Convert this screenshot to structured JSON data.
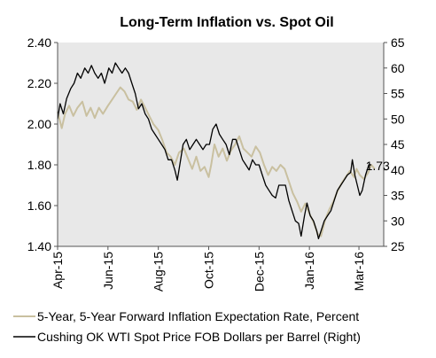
{
  "chart_data": {
    "type": "line",
    "title": "Long-Term Inflation vs. Spot Oil",
    "x_tick_labels": [
      "Apr-15",
      "Jun-15",
      "Aug-15",
      "Oct-15",
      "Dec-15",
      "Jan-16",
      "Mar-16"
    ],
    "x_tick_dates": [
      "2015-04-01",
      "2015-06-01",
      "2015-08-01",
      "2015-10-01",
      "2015-12-01",
      "2016-01-31",
      "2016-03-31"
    ],
    "xlim": [
      "2015-04-01",
      "2016-04-30"
    ],
    "y_left": {
      "lim": [
        1.4,
        2.4
      ],
      "ticks": [
        "1.40",
        "1.60",
        "1.80",
        "2.00",
        "2.20",
        "2.40"
      ]
    },
    "y_right": {
      "lim": [
        25,
        65
      ],
      "ticks": [
        "25",
        "30",
        "35",
        "40",
        "45",
        "50",
        "55",
        "60",
        "65"
      ]
    },
    "plot_background": "#e8e8e8",
    "grid": false,
    "legend_position": "bottom",
    "annotation": {
      "text": "1.73",
      "date": "2016-04-06",
      "value": 1.73
    },
    "series": [
      {
        "name": "5-Year, 5-Year Forward Inflation Expectation Rate, Percent",
        "axis": "left",
        "color": "#c9c0a0",
        "points": [
          [
            "2015-04-01",
            2.06
          ],
          [
            "2015-04-06",
            1.98
          ],
          [
            "2015-04-10",
            2.05
          ],
          [
            "2015-04-15",
            2.09
          ],
          [
            "2015-04-20",
            2.04
          ],
          [
            "2015-04-25",
            2.08
          ],
          [
            "2015-05-01",
            2.11
          ],
          [
            "2015-05-06",
            2.04
          ],
          [
            "2015-05-11",
            2.08
          ],
          [
            "2015-05-16",
            2.03
          ],
          [
            "2015-05-21",
            2.08
          ],
          [
            "2015-05-26",
            2.05
          ],
          [
            "2015-06-01",
            2.09
          ],
          [
            "2015-06-06",
            2.12
          ],
          [
            "2015-06-11",
            2.15
          ],
          [
            "2015-06-16",
            2.18
          ],
          [
            "2015-06-21",
            2.16
          ],
          [
            "2015-06-26",
            2.12
          ],
          [
            "2015-07-01",
            2.11
          ],
          [
            "2015-07-06",
            2.07
          ],
          [
            "2015-07-11",
            2.12
          ],
          [
            "2015-07-16",
            2.08
          ],
          [
            "2015-07-21",
            2.04
          ],
          [
            "2015-07-26",
            2.0
          ],
          [
            "2015-08-01",
            1.97
          ],
          [
            "2015-08-06",
            1.92
          ],
          [
            "2015-08-11",
            1.86
          ],
          [
            "2015-08-16",
            1.84
          ],
          [
            "2015-08-21",
            1.8
          ],
          [
            "2015-08-26",
            1.86
          ],
          [
            "2015-09-01",
            1.88
          ],
          [
            "2015-09-06",
            1.83
          ],
          [
            "2015-09-11",
            1.78
          ],
          [
            "2015-09-16",
            1.84
          ],
          [
            "2015-09-21",
            1.77
          ],
          [
            "2015-09-26",
            1.79
          ],
          [
            "2015-10-01",
            1.74
          ],
          [
            "2015-10-04",
            1.8
          ],
          [
            "2015-10-08",
            1.9
          ],
          [
            "2015-10-13",
            1.84
          ],
          [
            "2015-10-18",
            1.88
          ],
          [
            "2015-10-23",
            1.82
          ],
          [
            "2015-10-28",
            1.87
          ],
          [
            "2015-11-02",
            1.9
          ],
          [
            "2015-11-07",
            1.94
          ],
          [
            "2015-11-12",
            1.88
          ],
          [
            "2015-11-17",
            1.86
          ],
          [
            "2015-11-22",
            1.84
          ],
          [
            "2015-11-27",
            1.89
          ],
          [
            "2015-12-02",
            1.86
          ],
          [
            "2015-12-07",
            1.8
          ],
          [
            "2015-12-12",
            1.75
          ],
          [
            "2015-12-17",
            1.79
          ],
          [
            "2015-12-22",
            1.77
          ],
          [
            "2015-12-27",
            1.8
          ],
          [
            "2016-01-01",
            1.78
          ],
          [
            "2016-01-06",
            1.72
          ],
          [
            "2016-01-11",
            1.66
          ],
          [
            "2016-01-16",
            1.62
          ],
          [
            "2016-01-21",
            1.57
          ],
          [
            "2016-01-26",
            1.61
          ],
          [
            "2016-01-31",
            1.56
          ],
          [
            "2016-02-05",
            1.52
          ],
          [
            "2016-02-10",
            1.46
          ],
          [
            "2016-02-14",
            1.45
          ],
          [
            "2016-02-19",
            1.53
          ],
          [
            "2016-02-24",
            1.58
          ],
          [
            "2016-02-29",
            1.62
          ],
          [
            "2016-03-05",
            1.67
          ],
          [
            "2016-03-10",
            1.71
          ],
          [
            "2016-03-15",
            1.74
          ],
          [
            "2016-03-20",
            1.77
          ],
          [
            "2016-03-25",
            1.74
          ],
          [
            "2016-03-28",
            1.78
          ],
          [
            "2016-04-01",
            1.75
          ],
          [
            "2016-04-06",
            1.73
          ],
          [
            "2016-04-11",
            1.76
          ],
          [
            "2016-04-15",
            1.8
          ],
          [
            "2016-04-19",
            1.78
          ]
        ]
      },
      {
        "name": "Cushing OK WTI Spot Price FOB Dollars per Barrel (Right)",
        "axis": "right",
        "color": "#000000",
        "points": [
          [
            "2015-04-01",
            50
          ],
          [
            "2015-04-04",
            53
          ],
          [
            "2015-04-08",
            51
          ],
          [
            "2015-04-12",
            54
          ],
          [
            "2015-04-17",
            56
          ],
          [
            "2015-04-21",
            57
          ],
          [
            "2015-04-25",
            59
          ],
          [
            "2015-04-29",
            58
          ],
          [
            "2015-05-04",
            60
          ],
          [
            "2015-05-08",
            59
          ],
          [
            "2015-05-12",
            60.5
          ],
          [
            "2015-05-16",
            59
          ],
          [
            "2015-05-20",
            58
          ],
          [
            "2015-05-24",
            59
          ],
          [
            "2015-05-28",
            57
          ],
          [
            "2015-06-02",
            60
          ],
          [
            "2015-06-06",
            59
          ],
          [
            "2015-06-10",
            61
          ],
          [
            "2015-06-14",
            60
          ],
          [
            "2015-06-18",
            59
          ],
          [
            "2015-06-22",
            60
          ],
          [
            "2015-06-26",
            59
          ],
          [
            "2015-06-30",
            57
          ],
          [
            "2015-07-04",
            55
          ],
          [
            "2015-07-08",
            52
          ],
          [
            "2015-07-12",
            53
          ],
          [
            "2015-07-16",
            51
          ],
          [
            "2015-07-20",
            50
          ],
          [
            "2015-07-24",
            48
          ],
          [
            "2015-07-28",
            47
          ],
          [
            "2015-08-01",
            46
          ],
          [
            "2015-08-05",
            45
          ],
          [
            "2015-08-09",
            44
          ],
          [
            "2015-08-13",
            42
          ],
          [
            "2015-08-17",
            42
          ],
          [
            "2015-08-21",
            40
          ],
          [
            "2015-08-24",
            38
          ],
          [
            "2015-08-27",
            41
          ],
          [
            "2015-08-31",
            45
          ],
          [
            "2015-09-04",
            46
          ],
          [
            "2015-09-08",
            44
          ],
          [
            "2015-09-12",
            45
          ],
          [
            "2015-09-16",
            46
          ],
          [
            "2015-09-20",
            45
          ],
          [
            "2015-09-24",
            44
          ],
          [
            "2015-09-28",
            45
          ],
          [
            "2015-10-02",
            45
          ],
          [
            "2015-10-06",
            48
          ],
          [
            "2015-10-10",
            49
          ],
          [
            "2015-10-14",
            47
          ],
          [
            "2015-10-18",
            46
          ],
          [
            "2015-10-22",
            45
          ],
          [
            "2015-10-26",
            43
          ],
          [
            "2015-10-30",
            46
          ],
          [
            "2015-11-03",
            46
          ],
          [
            "2015-11-07",
            44
          ],
          [
            "2015-11-11",
            42
          ],
          [
            "2015-11-15",
            41
          ],
          [
            "2015-11-19",
            40
          ],
          [
            "2015-11-23",
            42
          ],
          [
            "2015-11-27",
            41
          ],
          [
            "2015-12-01",
            41
          ],
          [
            "2015-12-05",
            39
          ],
          [
            "2015-12-09",
            37
          ],
          [
            "2015-12-13",
            36
          ],
          [
            "2015-12-17",
            35
          ],
          [
            "2015-12-21",
            34.5
          ],
          [
            "2015-12-25",
            37
          ],
          [
            "2015-12-29",
            37
          ],
          [
            "2016-01-02",
            37
          ],
          [
            "2016-01-06",
            34
          ],
          [
            "2016-01-10",
            32
          ],
          [
            "2016-01-14",
            30
          ],
          [
            "2016-01-18",
            29.5
          ],
          [
            "2016-01-21",
            27
          ],
          [
            "2016-01-25",
            31
          ],
          [
            "2016-01-28",
            33.5
          ],
          [
            "2016-02-01",
            31
          ],
          [
            "2016-02-05",
            30
          ],
          [
            "2016-02-09",
            28
          ],
          [
            "2016-02-11",
            26.5
          ],
          [
            "2016-02-14",
            28
          ],
          [
            "2016-02-18",
            30
          ],
          [
            "2016-02-22",
            31
          ],
          [
            "2016-02-26",
            32
          ],
          [
            "2016-03-01",
            34
          ],
          [
            "2016-03-05",
            36
          ],
          [
            "2016-03-09",
            37
          ],
          [
            "2016-03-13",
            38
          ],
          [
            "2016-03-17",
            39
          ],
          [
            "2016-03-21",
            39.5
          ],
          [
            "2016-03-23",
            42
          ],
          [
            "2016-03-26",
            39
          ],
          [
            "2016-03-29",
            37
          ],
          [
            "2016-04-01",
            35
          ],
          [
            "2016-04-04",
            36
          ],
          [
            "2016-04-08",
            39
          ],
          [
            "2016-04-12",
            41
          ],
          [
            "2016-04-15",
            41
          ]
        ]
      }
    ]
  }
}
